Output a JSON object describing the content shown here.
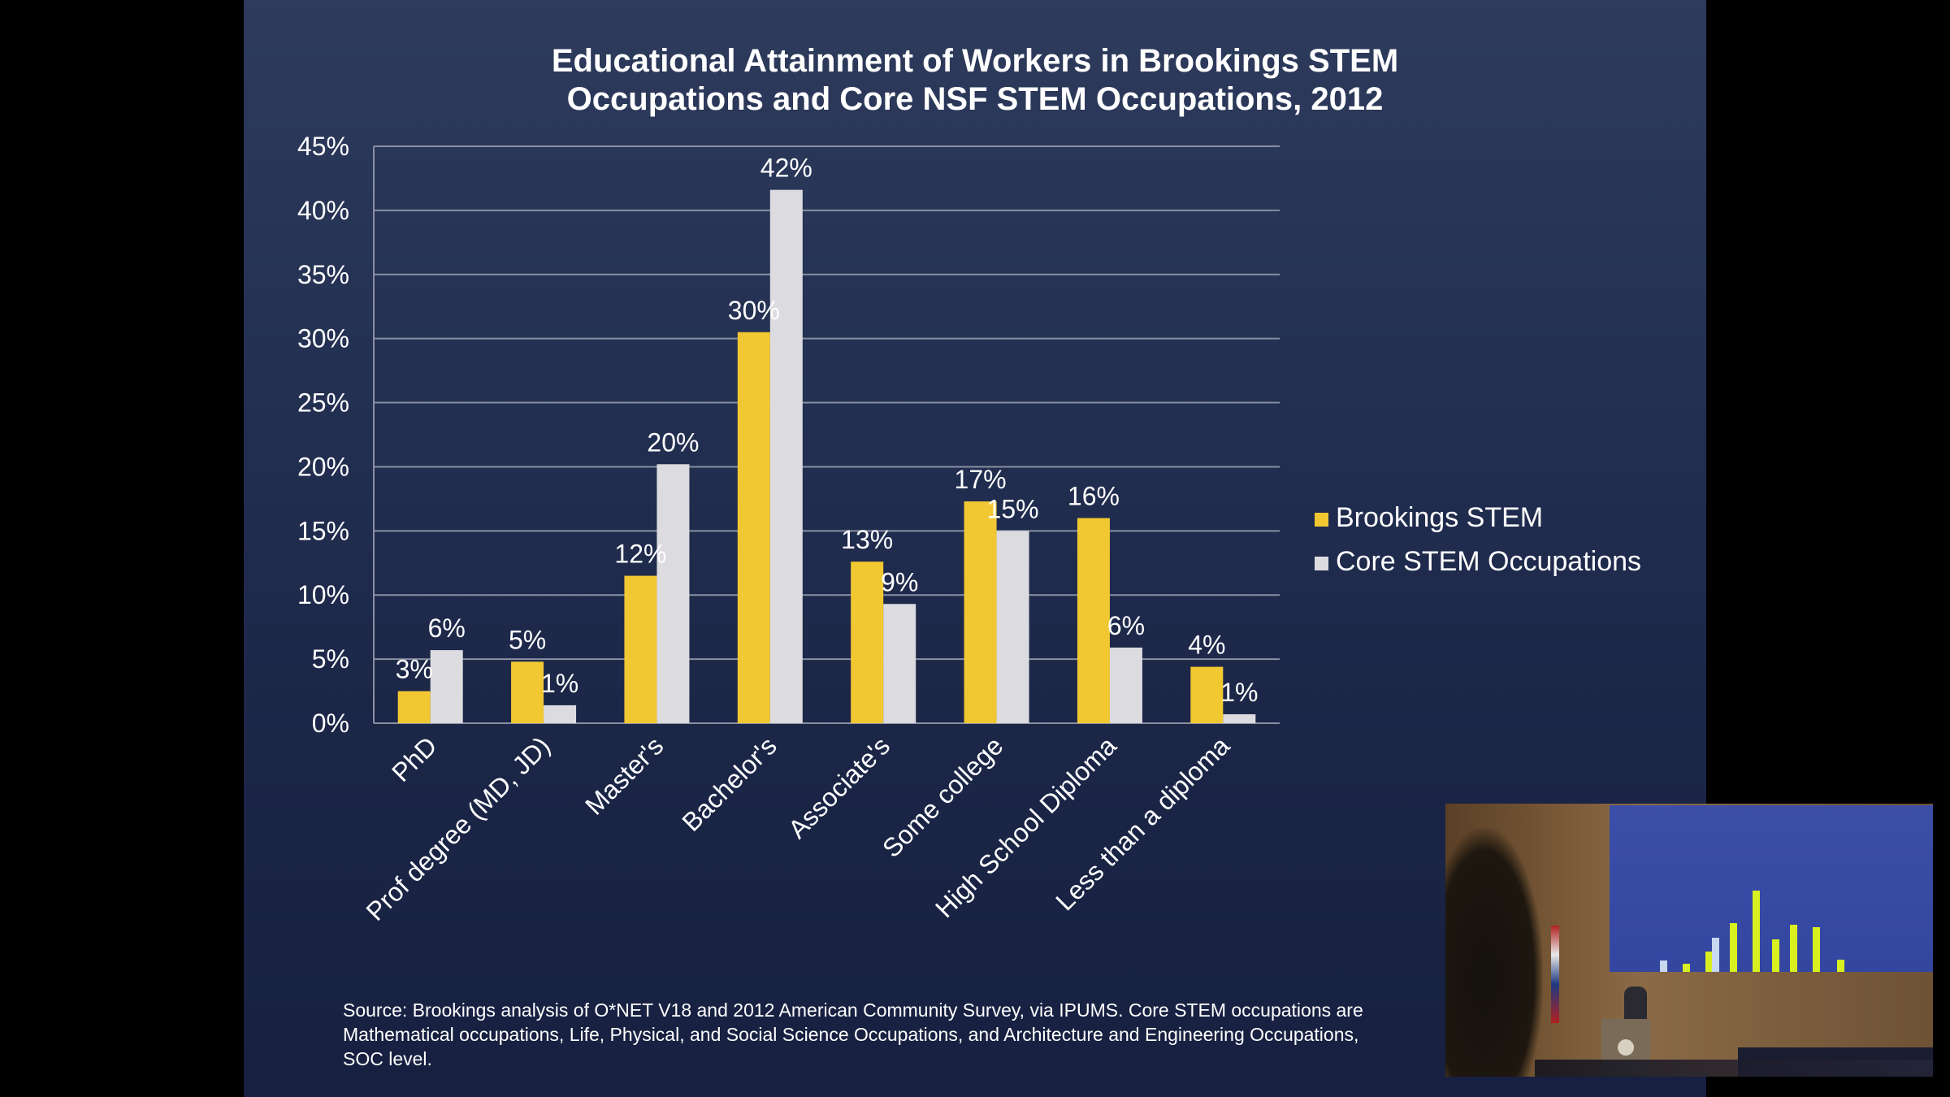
{
  "chart_data": {
    "type": "bar",
    "title": "Educational Attainment of Workers in Brookings STEM Occupations and Core NSF STEM Occupations, 2012",
    "title_lines": [
      "Educational Attainment of Workers in Brookings STEM",
      "Occupations and Core NSF STEM Occupations, 2012"
    ],
    "categories": [
      "PhD",
      "Prof degree (MD, JD)",
      "Master's",
      "Bachelor's",
      "Associate's",
      "Some college",
      "High School Diploma",
      "Less than a diploma"
    ],
    "series": [
      {
        "name": "Brookings STEM",
        "color": "#f2c832",
        "values": [
          2.5,
          4.8,
          11.5,
          30.5,
          12.6,
          17.3,
          16.0,
          4.4
        ],
        "labels": [
          "3%",
          "5%",
          "12%",
          "30%",
          "13%",
          "17%",
          "16%",
          "4%"
        ]
      },
      {
        "name": "Core STEM Occupations",
        "color": "#dcdce0",
        "values": [
          5.7,
          1.4,
          20.2,
          41.6,
          9.3,
          15.0,
          5.9,
          0.7
        ],
        "labels": [
          "6%",
          "1%",
          "20%",
          "42%",
          "9%",
          "15%",
          "6%",
          "1%"
        ]
      }
    ],
    "ylim": [
      0,
      45
    ],
    "yticks": [
      0,
      5,
      10,
      15,
      20,
      25,
      30,
      35,
      40,
      45
    ],
    "ytick_labels": [
      "0%",
      "5%",
      "10%",
      "15%",
      "20%",
      "25%",
      "30%",
      "35%",
      "40%",
      "45%"
    ],
    "xlabel": "",
    "ylabel": "",
    "grid": true,
    "legend_position": "right"
  },
  "source_note": [
    "Source: Brookings analysis of O*NET V18 and 2012 American Community Survey, via IPUMS. Core STEM occupations are",
    "Mathematical occupations, Life, Physical, and Social Science Occupations, and Architecture and Engineering Occupations,",
    "SOC level."
  ],
  "colors": {
    "slide_background": "#1f2a4a",
    "gridline": "#8a8fa0",
    "text": "#ffffff"
  }
}
